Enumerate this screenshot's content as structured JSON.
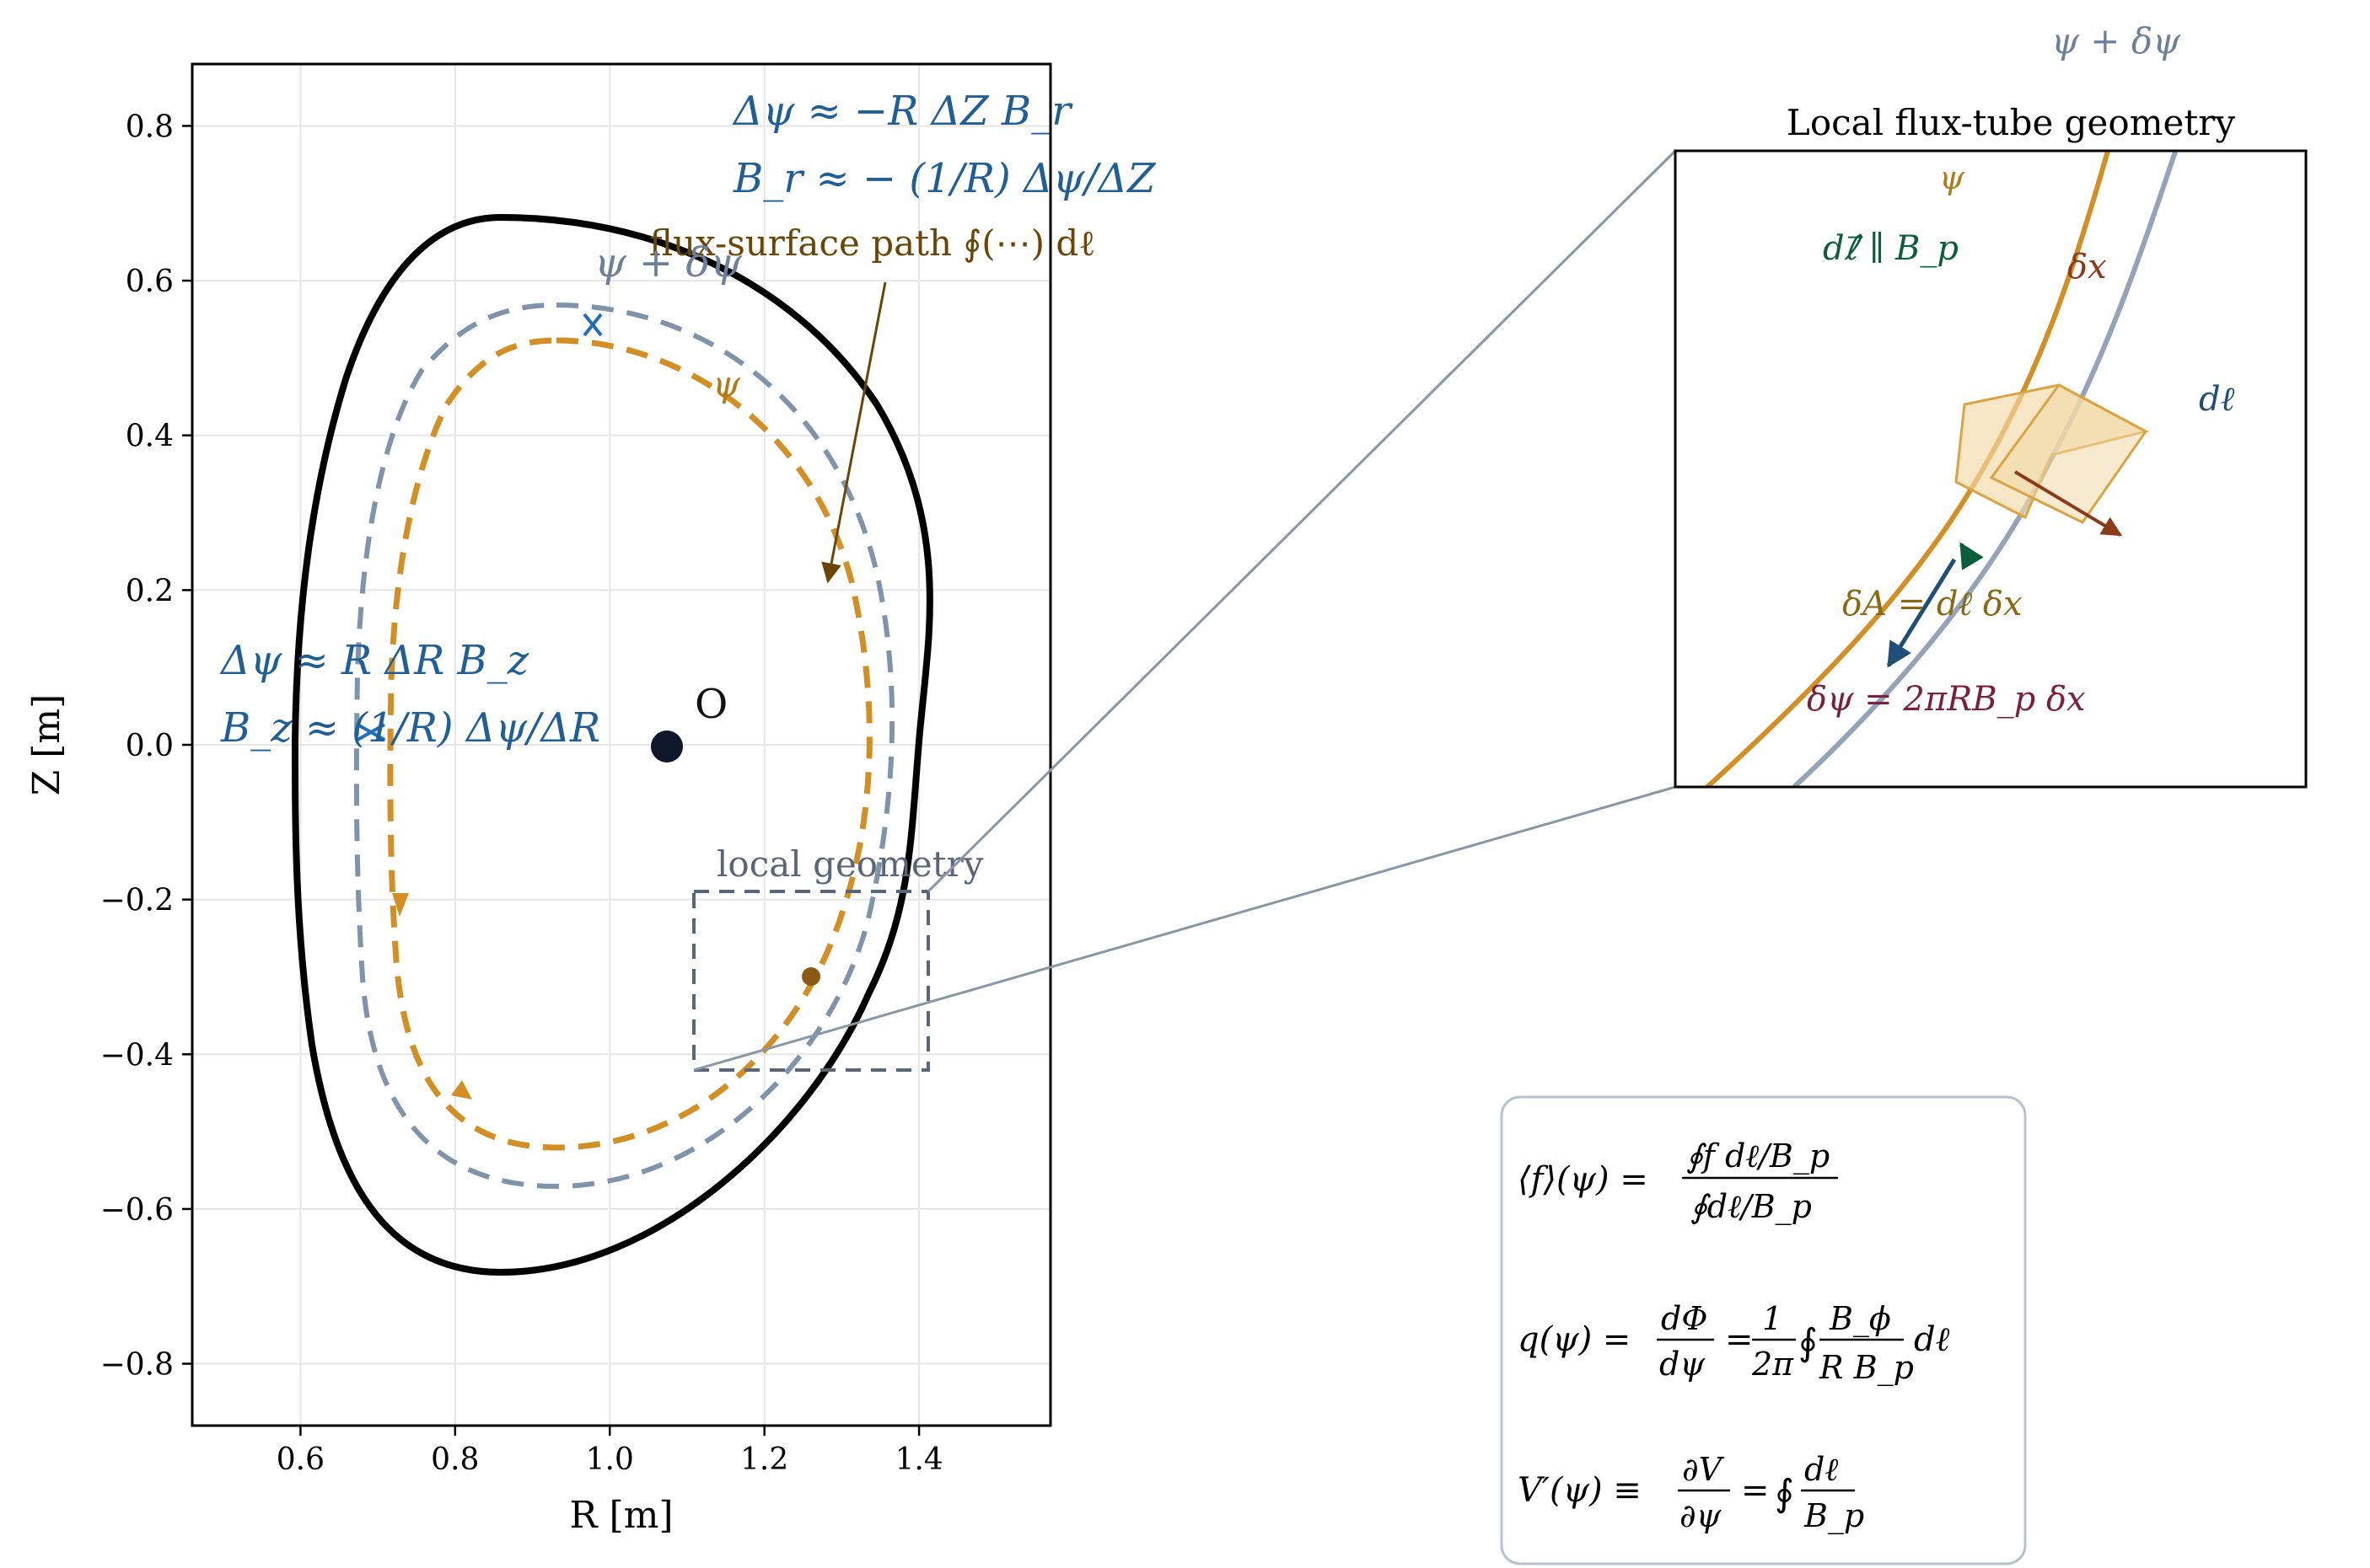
{
  "main_plot": {
    "xlabel": "R [m]",
    "ylabel": "Z [m]",
    "xticks": [
      "0.6",
      "0.8",
      "1.0",
      "1.2",
      "1.4"
    ],
    "yticks": [
      "0.8",
      "0.6",
      "0.4",
      "0.2",
      "0.0",
      "−0.2",
      "−0.4",
      "−0.6",
      "−0.8"
    ],
    "xlim": [
      0.46,
      1.57
    ],
    "ylim": [
      -0.88,
      0.88
    ],
    "grid": true,
    "axis_point_label": "O",
    "label_psi_plus": "ψ + δψ",
    "label_psi": "ψ",
    "path_annotation": "flux-surface path ∮(⋯) dℓ",
    "top_eq1": "Δψ ≈ −R ΔZ B_r",
    "top_eq2": "B_r ≈ − (1/R) Δψ/ΔZ",
    "left_eq1": "Δψ ≈ R ΔR B_z",
    "left_eq2": "B_z ≈ (1/R) Δψ/ΔR",
    "local_box_label": "local geometry",
    "colors": {
      "boundary": "#000000",
      "outer_surface": "#7f93ab",
      "inner_surface": "#d38f24",
      "annotation_blue": "#1f5e96",
      "annotation_brown": "#6b4505",
      "local_box": "#5a6678"
    }
  },
  "inset": {
    "title": "Local flux-tube geometry",
    "label_psi_plus": "ψ + δψ",
    "label_psi": "ψ",
    "label_dl_parallel": "dℓ⃗ ∥ B_p",
    "label_dx": "δx",
    "label_dl": "dℓ",
    "label_area": "δA = dℓ δx",
    "label_dpsi": "δψ = 2πRB_p δx",
    "colors": {
      "psi": "#d38f24",
      "psi_plus": "#94a3b8",
      "dl_parallel": "#0b5d3b",
      "dx": "#8b3a1a",
      "dl": "#1f4e79",
      "area": "#8b6914",
      "dpsi": "#7a1f3d"
    }
  },
  "formulas": {
    "f_avg": {
      "lhs": "⟨f⟩(ψ) =",
      "num": "∮f dℓ/B_p",
      "den": "∮dℓ/B_p"
    },
    "q": {
      "lhs": "q(ψ) =",
      "f1_num": "dΦ",
      "f1_den": "dψ",
      "f2_num": "1",
      "f2_den": "2π",
      "f3_num": "B_ϕ",
      "f3_den": "R B_p",
      "tail": "dℓ"
    },
    "vprime": {
      "lhs": "V′(ψ) ≡",
      "f1_num": "∂V",
      "f1_den": "∂ψ",
      "f2_num": "dℓ",
      "f2_den": "B_p"
    }
  }
}
